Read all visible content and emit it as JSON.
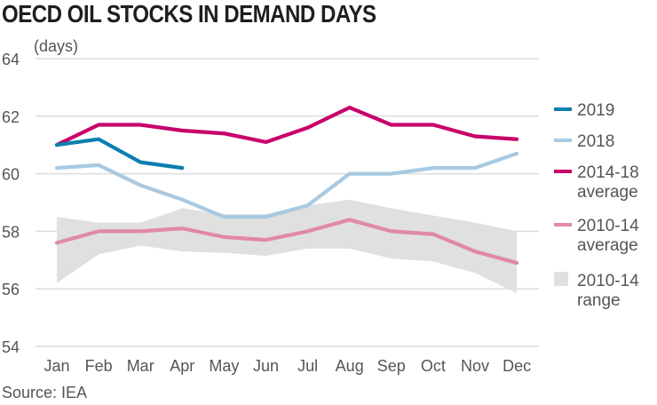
{
  "chart_data": {
    "type": "line",
    "title": "OECD OIL STOCKS IN DEMAND DAYS",
    "ylabel": "(days)",
    "xlabel": "",
    "source": "Source: IEA",
    "categories": [
      "Jan",
      "Feb",
      "Mar",
      "Apr",
      "May",
      "Jun",
      "Jul",
      "Aug",
      "Sep",
      "Oct",
      "Nov",
      "Dec"
    ],
    "ylim": [
      54,
      64
    ],
    "yticks": [
      54,
      56,
      58,
      60,
      62,
      64
    ],
    "grid": true,
    "legend_position": "right",
    "range_band": {
      "name": "2010-14 range",
      "label_lines": [
        "2010-14",
        "range"
      ],
      "color": "#e0e0df",
      "upper": [
        58.5,
        58.3,
        58.3,
        58.8,
        58.6,
        58.6,
        58.9,
        59.1,
        58.8,
        58.55,
        58.3,
        58.0
      ],
      "lower": [
        56.2,
        57.2,
        57.5,
        57.3,
        57.25,
        57.15,
        57.4,
        57.4,
        57.05,
        56.95,
        56.55,
        55.85
      ]
    },
    "series": [
      {
        "name": "2010-14 average",
        "label_lines": [
          "2010-14",
          "average"
        ],
        "color": "#e089a7",
        "values": [
          57.6,
          58.0,
          58.0,
          58.1,
          57.8,
          57.7,
          58.0,
          58.4,
          58.0,
          57.9,
          57.3,
          56.9
        ]
      },
      {
        "name": "2018",
        "label_lines": [
          "2018"
        ],
        "color": "#a8c9e2",
        "values": [
          60.2,
          60.3,
          59.6,
          59.1,
          58.5,
          58.5,
          58.9,
          60.0,
          60.0,
          60.2,
          60.2,
          60.7
        ]
      },
      {
        "name": "2014-18 average",
        "label_lines": [
          "2014-18",
          "average"
        ],
        "color": "#c8006a",
        "values": [
          61.0,
          61.7,
          61.7,
          61.5,
          61.4,
          61.1,
          61.6,
          62.3,
          61.7,
          61.7,
          61.3,
          61.2
        ]
      },
      {
        "name": "2019",
        "label_lines": [
          "2019"
        ],
        "color": "#0a7fb0",
        "values": [
          61.0,
          61.2,
          60.4,
          60.2,
          null,
          null,
          null,
          null,
          null,
          null,
          null,
          null
        ]
      }
    ],
    "legend_order": [
      "2019",
      "2018",
      "2014-18 average",
      "2010-14 average",
      "2010-14 range"
    ]
  }
}
